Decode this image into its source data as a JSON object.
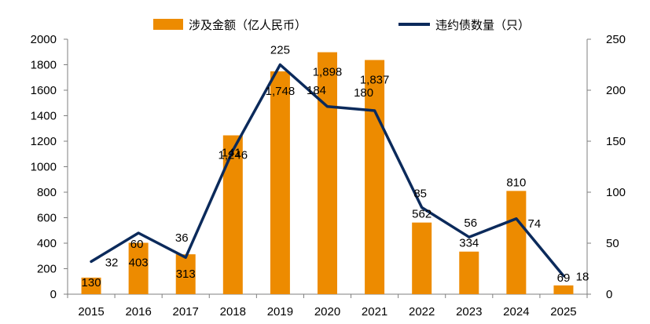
{
  "chart_data": {
    "type": "bar",
    "categories": [
      "2015",
      "2016",
      "2017",
      "2018",
      "2019",
      "2020",
      "2021",
      "2022",
      "2023",
      "2024",
      "2025"
    ],
    "series": [
      {
        "name": "涉及金额（亿人民币）",
        "kind": "bar",
        "axis": "left",
        "color": "#ED8B00",
        "values": [
          130,
          403,
          313,
          1246,
          1748,
          1898,
          1837,
          562,
          334,
          810,
          69
        ],
        "labels": [
          "130",
          "403",
          "313",
          "1,246",
          "1,748",
          "1,898",
          "1,837",
          "562",
          "334",
          "810",
          "69"
        ]
      },
      {
        "name": "违约债数量（只）",
        "kind": "line",
        "axis": "right",
        "color": "#0B2A5B",
        "values": [
          32,
          60,
          36,
          141,
          225,
          184,
          180,
          85,
          56,
          74,
          18
        ],
        "labels": [
          "32",
          "60",
          "36",
          "141",
          "225",
          "184",
          "180",
          "85",
          "56",
          "74",
          "18"
        ]
      }
    ],
    "y_left": {
      "min": 0,
      "max": 2000,
      "step": 200,
      "ticks": [
        "0",
        "200",
        "400",
        "600",
        "800",
        "1000",
        "1200",
        "1400",
        "1600",
        "1800",
        "2000"
      ]
    },
    "y_right": {
      "min": 0,
      "max": 250,
      "step": 50,
      "ticks": [
        "0",
        "50",
        "100",
        "150",
        "200",
        "250"
      ]
    },
    "grid": false,
    "legend_position": "top"
  }
}
